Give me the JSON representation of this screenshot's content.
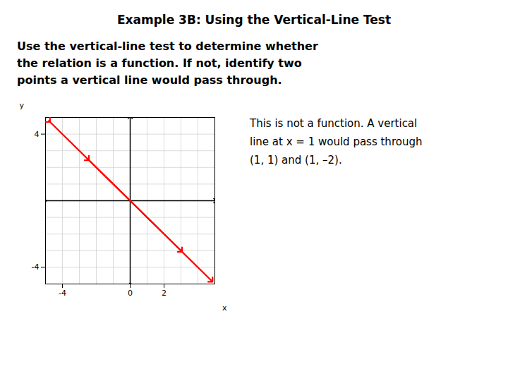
{
  "chart_data": {
    "type": "line",
    "title": "Example 3B: Using the Vertical-Line Test",
    "subtitle": [
      "Use the vertical-line test to determine whether",
      "the relation is a function. If not, identify two",
      "points a vertical line would pass through."
    ],
    "annotations": [
      "This is not a function. A vertical",
      "line at x = 1 would pass through",
      "(1, 1) and (1, –2)."
    ],
    "xlabel": "x",
    "ylabel": "y",
    "xlim": [
      -5,
      5
    ],
    "ylim": [
      -5,
      5
    ],
    "xticks": [
      -4,
      0,
      2
    ],
    "yticks": [
      -4,
      4
    ],
    "grid": true,
    "marker": "arrow",
    "series": [
      {
        "color": "red",
        "x": [
          -4.8,
          3.0
        ],
        "values": [
          4.8,
          -3.0
        ]
      },
      {
        "color": "red",
        "x": [
          -2.5,
          4.8
        ],
        "values": [
          2.5,
          -4.8
        ]
      }
    ]
  }
}
